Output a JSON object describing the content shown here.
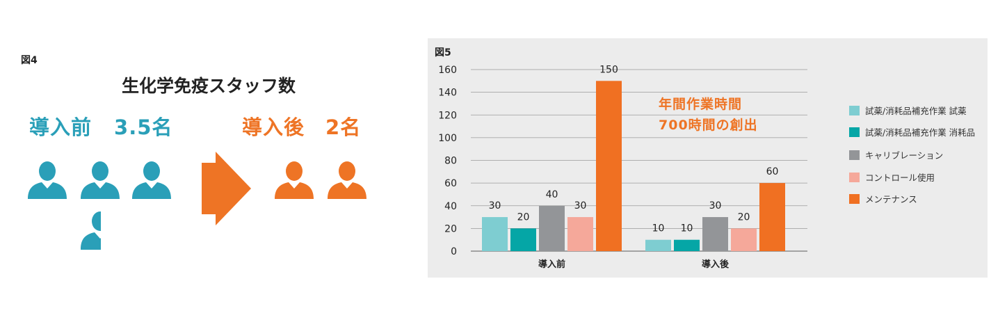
{
  "fig4": {
    "label": "図4",
    "title": "生化学免疫スタッフ数",
    "before": {
      "label": "導入前",
      "value": "3.5名",
      "staff": 3.5
    },
    "after": {
      "label": "導入後",
      "value": "2名",
      "staff": 2
    },
    "colors": {
      "before": "#2a9fb8",
      "after": "#ee7425"
    }
  },
  "fig5": {
    "label": "図5",
    "annotation": [
      "年間作業時間",
      "700時間の創出"
    ]
  },
  "chart_data": {
    "type": "bar",
    "categories": [
      "導入前",
      "導入後"
    ],
    "series": [
      {
        "name": "試薬/消耗品補充作業 試薬",
        "color": "#7ecdd1",
        "values": [
          30,
          10
        ]
      },
      {
        "name": "試薬/消耗品補充作業 消耗品",
        "color": "#05a6a6",
        "values": [
          20,
          10
        ]
      },
      {
        "name": "キャリブレーション",
        "color": "#939598",
        "values": [
          40,
          30
        ]
      },
      {
        "name": "コントロール使用",
        "color": "#f5a89a",
        "values": [
          30,
          20
        ]
      },
      {
        "name": "メンテナンス",
        "color": "#f07022",
        "values": [
          150,
          60
        ]
      }
    ],
    "yticks": [
      0,
      20,
      40,
      60,
      80,
      100,
      120,
      140,
      160
    ],
    "ylim": [
      0,
      160
    ],
    "grid": true,
    "legend": "right"
  }
}
